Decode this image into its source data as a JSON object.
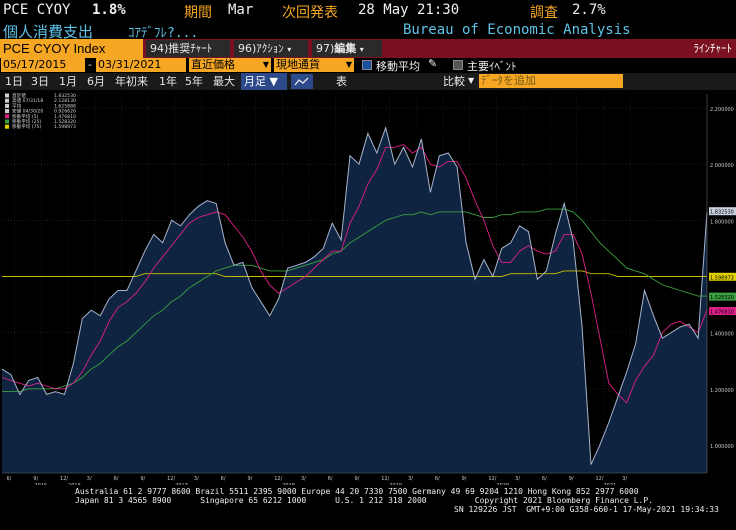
{
  "header": {
    "ticker": "PCE CYOY",
    "value": "1.8%",
    "period_label": "期間",
    "period_value": "Mar",
    "next_release_label": "次回発表",
    "next_release_value": "28 May 21:30",
    "survey_label": "調査",
    "survey_value": "2.7%",
    "name_jp": "個人消費支出",
    "name_sub": "ｺｱﾃﾞﾌﾚ?...",
    "source": "Bureau of Economic Analysis"
  },
  "menubar": {
    "security": "PCE CYOY Index",
    "buttons": [
      {
        "num": "94)",
        "label": "推奨ﾁｬｰﾄ"
      },
      {
        "num": "96)",
        "label": "ｱｸｼｮﾝ"
      },
      {
        "num": "97)",
        "label": "編集"
      }
    ],
    "chart_type": "ﾗｲﾝﾁｬｰﾄ"
  },
  "daterow": {
    "start_date": "05/17/2015",
    "separator": "-",
    "end_date": "03/31/2021",
    "price_type": "直近価格",
    "currency": "現地通貨",
    "moving_avg_label": "移動平均",
    "moving_avg_checked": true,
    "key_events_label": "主要ｲﾍﾞﾝﾄ",
    "key_events_checked": false
  },
  "periodrow": {
    "periods": [
      "1日",
      "3日",
      "1月",
      "6月",
      "年初来",
      "1年",
      "5年",
      "最大"
    ],
    "frequency": "月足 ▼",
    "table_label": "表",
    "compare_label": "比較",
    "add_placeholder": "ﾃﾞｰﾀを追加"
  },
  "legend": [
    {
      "label": "直近値",
      "value": "1.832530",
      "color": "#d0d0d0"
    },
    {
      "label": "高値 07/31/18",
      "value": "2.128130",
      "color": "#d0d0d0"
    },
    {
      "label": "平均",
      "value": "1.625888",
      "color": "#d0d0d0"
    },
    {
      "label": "安値 04/30/20",
      "value": "0.926620",
      "color": "#d0d0d0"
    },
    {
      "label": "移動平均 (5)",
      "value": "1.476810",
      "color": "#e0208a"
    },
    {
      "label": "移動平均 (25)",
      "value": "1.528320",
      "color": "#3aa040"
    },
    {
      "label": "移動平均 (75)",
      "value": "1.598973",
      "color": "#e0d000"
    }
  ],
  "right_badges": [
    {
      "text": "1.832530",
      "bg": "#c8d0e0",
      "fg": "#000",
      "value": 1.83253
    },
    {
      "text": "1.598973",
      "bg": "#e0d000",
      "fg": "#000",
      "value": 1.598973
    },
    {
      "text": "1.528320",
      "bg": "#3aa040",
      "fg": "#000",
      "value": 1.52832
    },
    {
      "text": "1.476810",
      "bg": "#e0208a",
      "fg": "#000",
      "value": 1.47681
    }
  ],
  "chart_data": {
    "type": "area",
    "title": "",
    "xlabel": "",
    "ylabel": "",
    "ylim": [
      0.9,
      2.25
    ],
    "yticks": [
      1.0,
      1.2,
      1.4,
      1.6,
      1.8,
      2.0,
      2.2
    ],
    "ytick_labels": [
      "1.000000",
      "1.200000",
      "1.400000",
      "1.600000",
      "1.800000",
      "2.000000",
      "2.200000"
    ],
    "x_month_labels": [
      "6/",
      "9/",
      "12/",
      "3/",
      "6/",
      "9/",
      "12/",
      "3/",
      "6/",
      "9/",
      "12/",
      "3/",
      "6/",
      "9/",
      "12/",
      "3/",
      "6/",
      "9/",
      "12/",
      "3/",
      "6/",
      "9/",
      "12/",
      "3/"
    ],
    "x_year_labels": [
      "2015",
      "2016",
      "2017",
      "2018",
      "2019",
      "2020",
      "2021"
    ],
    "series": [
      {
        "name": "PCE CYOY",
        "color": "#a8b4cc",
        "fill": "#0f2440",
        "values": [
          1.27,
          1.25,
          1.18,
          1.23,
          1.24,
          1.18,
          1.19,
          1.18,
          1.29,
          1.45,
          1.48,
          1.46,
          1.52,
          1.55,
          1.55,
          1.62,
          1.69,
          1.75,
          1.72,
          1.8,
          1.78,
          1.82,
          1.85,
          1.87,
          1.86,
          1.72,
          1.64,
          1.65,
          1.56,
          1.51,
          1.46,
          1.52,
          1.63,
          1.64,
          1.65,
          1.67,
          1.7,
          1.79,
          1.73,
          2.03,
          2.0,
          2.11,
          2.04,
          2.13,
          2.0,
          2.06,
          1.99,
          2.09,
          1.9,
          2.03,
          2.04,
          1.99,
          1.72,
          1.59,
          1.66,
          1.6,
          1.7,
          1.72,
          1.78,
          1.76,
          1.59,
          1.62,
          1.75,
          1.86,
          1.73,
          1.42,
          0.93,
          1.0,
          1.08,
          1.17,
          1.26,
          1.36,
          1.55,
          1.46,
          1.38,
          1.4,
          1.42,
          1.43,
          1.38,
          1.83
        ]
      },
      {
        "name": "移動平均 (5)",
        "color": "#e0208a",
        "values": [
          1.24,
          1.23,
          1.22,
          1.21,
          1.22,
          1.21,
          1.2,
          1.2,
          1.22,
          1.26,
          1.32,
          1.37,
          1.44,
          1.49,
          1.51,
          1.54,
          1.58,
          1.63,
          1.67,
          1.71,
          1.75,
          1.79,
          1.81,
          1.82,
          1.83,
          1.82,
          1.78,
          1.74,
          1.69,
          1.62,
          1.57,
          1.54,
          1.56,
          1.58,
          1.6,
          1.63,
          1.66,
          1.69,
          1.69,
          1.79,
          1.85,
          1.93,
          1.98,
          2.06,
          2.06,
          2.07,
          2.04,
          2.06,
          2.0,
          1.99,
          2.01,
          2.01,
          1.95,
          1.87,
          1.8,
          1.71,
          1.65,
          1.65,
          1.69,
          1.71,
          1.69,
          1.68,
          1.69,
          1.75,
          1.75,
          1.68,
          1.54,
          1.38,
          1.22,
          1.18,
          1.15,
          1.23,
          1.28,
          1.32,
          1.4,
          1.43,
          1.44,
          1.42,
          1.4,
          1.48
        ]
      },
      {
        "name": "移動平均 (25)",
        "color": "#3aa040",
        "values": [
          1.19,
          1.19,
          1.19,
          1.2,
          1.2,
          1.2,
          1.2,
          1.21,
          1.22,
          1.24,
          1.27,
          1.29,
          1.32,
          1.35,
          1.37,
          1.4,
          1.43,
          1.46,
          1.48,
          1.51,
          1.53,
          1.56,
          1.58,
          1.6,
          1.62,
          1.63,
          1.64,
          1.64,
          1.64,
          1.63,
          1.62,
          1.62,
          1.62,
          1.63,
          1.64,
          1.65,
          1.66,
          1.68,
          1.69,
          1.72,
          1.74,
          1.76,
          1.78,
          1.8,
          1.81,
          1.82,
          1.82,
          1.83,
          1.82,
          1.83,
          1.83,
          1.83,
          1.83,
          1.82,
          1.81,
          1.81,
          1.82,
          1.82,
          1.83,
          1.83,
          1.83,
          1.84,
          1.84,
          1.84,
          1.83,
          1.8,
          1.76,
          1.72,
          1.69,
          1.66,
          1.63,
          1.62,
          1.61,
          1.59,
          1.57,
          1.56,
          1.55,
          1.54,
          1.53,
          1.53
        ]
      },
      {
        "name": "移動平均 (75)",
        "color": "#c8c000",
        "values": [
          1.6,
          1.6,
          1.6,
          1.6,
          1.6,
          1.6,
          1.6,
          1.6,
          1.6,
          1.6,
          1.6,
          1.6,
          1.6,
          1.6,
          1.6,
          1.6,
          1.61,
          1.61,
          1.61,
          1.61,
          1.61,
          1.61,
          1.61,
          1.61,
          1.61,
          1.6,
          1.6,
          1.6,
          1.6,
          1.6,
          1.6,
          1.6,
          1.6,
          1.6,
          1.6,
          1.6,
          1.6,
          1.6,
          1.6,
          1.6,
          1.6,
          1.6,
          1.6,
          1.6,
          1.6,
          1.6,
          1.6,
          1.6,
          1.6,
          1.6,
          1.6,
          1.6,
          1.6,
          1.6,
          1.6,
          1.6,
          1.6,
          1.61,
          1.61,
          1.61,
          1.61,
          1.61,
          1.61,
          1.62,
          1.62,
          1.62,
          1.61,
          1.61,
          1.61,
          1.6,
          1.6,
          1.6,
          1.6,
          1.6,
          1.6,
          1.6,
          1.6,
          1.6,
          1.6,
          1.6
        ]
      }
    ]
  },
  "footer": {
    "line1": "Australia 61 2 9777 8600 Brazil 5511 2395 9000 Europe 44 20 7330 7500 Germany 49 69 9204 1210 Hong Kong 852 2977 6000",
    "line2": "Japan 81 3 4565 8900      Singapore 65 6212 1000      U.S. 1 212 318 2000          Copyright 2021 Bloomberg Finance L.P.",
    "line3": "SN 129226 JST  GMT+9:00 G358-660-1 17-May-2021 19:34:33"
  }
}
